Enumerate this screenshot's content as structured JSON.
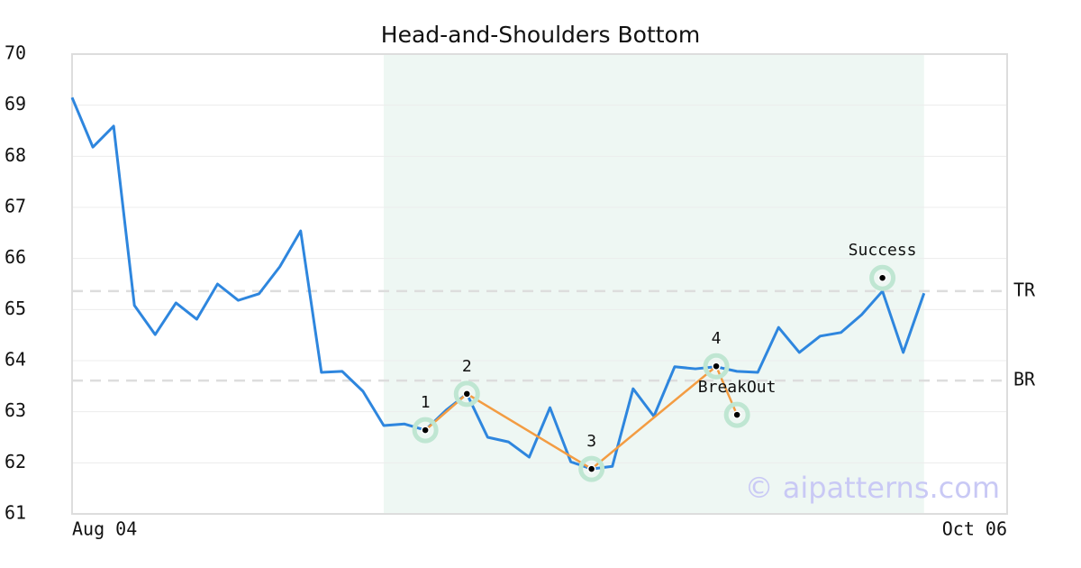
{
  "chart_data": {
    "type": "line",
    "title": "Head-and-Shoulders Bottom",
    "categories": [
      "Aug 04",
      null,
      null,
      null,
      null,
      null,
      null,
      null,
      null,
      null,
      null,
      null,
      null,
      null,
      null,
      null,
      null,
      null,
      null,
      null,
      null,
      null,
      null,
      null,
      null,
      null,
      null,
      null,
      null,
      null,
      null,
      null,
      null,
      null,
      null,
      null,
      null,
      null,
      null,
      null,
      null,
      null,
      null,
      null,
      null,
      "Oct 06"
    ],
    "values": [
      69.15,
      68.18,
      68.59,
      65.08,
      64.51,
      65.13,
      64.81,
      65.5,
      65.18,
      65.31,
      65.84,
      66.54,
      63.77,
      63.79,
      63.4,
      62.73,
      62.76,
      62.64,
      63.03,
      63.35,
      62.5,
      62.41,
      62.11,
      63.08,
      62.02,
      61.88,
      61.93,
      63.45,
      62.91,
      63.88,
      63.84,
      63.88,
      63.79,
      63.77,
      64.65,
      64.16,
      64.48,
      64.55,
      64.9,
      65.36,
      64.16,
      65.32,
      null,
      null,
      null,
      null
    ],
    "color": "#2e86de",
    "ylim": [
      61,
      70
    ],
    "yticks": [
      61,
      62,
      63,
      64,
      65,
      66,
      67,
      68,
      69,
      70
    ],
    "grid": true,
    "highlight": {
      "start": 15,
      "end": 41,
      "color": "#eef7f3"
    },
    "levels": [
      {
        "label": "TR",
        "value": 65.36
      },
      {
        "label": "BR",
        "value": 63.61
      }
    ],
    "pattern": {
      "color": "#f39c42",
      "points": [
        {
          "label": "1",
          "index": 17,
          "value": 62.64
        },
        {
          "label": "2",
          "index": 19,
          "value": 63.35
        },
        {
          "label": "3",
          "index": 25,
          "value": 61.88
        },
        {
          "label": "4",
          "index": 31,
          "value": 63.89
        },
        {
          "label": "BreakOut",
          "index": 32,
          "value": 62.94
        }
      ],
      "success": {
        "label": "Success",
        "index": 39,
        "value": 65.62
      }
    },
    "watermark": "© aipatterns.com"
  }
}
